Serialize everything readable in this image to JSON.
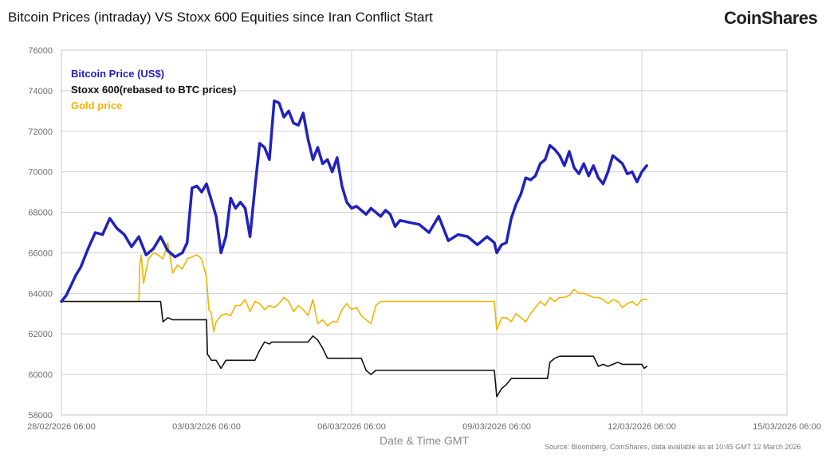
{
  "title": "Bitcoin Prices (intraday) VS  Stoxx 600 Equities since Iran Conflict Start",
  "brand": "CoinShares",
  "source": "Source: Bloomberg, CoinShares, data available as at 10:45 GMT 12 March 2026",
  "chart_data": {
    "type": "line",
    "xlabel": "Date & Time GMT",
    "ylabel": "",
    "ylim": [
      58000,
      76000
    ],
    "yticks": [
      58000,
      60000,
      62000,
      64000,
      66000,
      68000,
      70000,
      72000,
      74000,
      76000
    ],
    "yticklabels": [
      "58000",
      "60000",
      "62000",
      "64000",
      "66000",
      "68000",
      "70000",
      "72000",
      "74000",
      "76000"
    ],
    "xlim_days": [
      0,
      15
    ],
    "xticks_days": [
      0,
      3,
      6,
      9,
      12,
      15
    ],
    "xticklabels": [
      "28/02/2026 06:00",
      "03/03/2026 06:00",
      "06/03/2026 06:00",
      "09/03/2026 06:00",
      "12/03/2026 06:00",
      "15/03/2026 06:00"
    ],
    "grid": true,
    "legend_position": "top-left",
    "series": [
      {
        "name": "Bitcoin Price (US$)",
        "color": "#2222bb",
        "x": [
          0,
          0.1,
          0.2,
          0.3,
          0.4,
          0.55,
          0.7,
          0.85,
          1.0,
          1.15,
          1.3,
          1.45,
          1.6,
          1.75,
          1.9,
          2.05,
          2.2,
          2.35,
          2.5,
          2.6,
          2.7,
          2.8,
          2.9,
          3.0,
          3.1,
          3.2,
          3.3,
          3.4,
          3.5,
          3.6,
          3.7,
          3.8,
          3.9,
          4.0,
          4.1,
          4.2,
          4.3,
          4.4,
          4.5,
          4.6,
          4.7,
          4.8,
          4.9,
          5.0,
          5.1,
          5.2,
          5.3,
          5.4,
          5.5,
          5.6,
          5.7,
          5.8,
          5.9,
          6.0,
          6.1,
          6.2,
          6.3,
          6.4,
          6.5,
          6.6,
          6.7,
          6.8,
          6.9,
          7.0,
          7.2,
          7.4,
          7.6,
          7.8,
          8.0,
          8.2,
          8.4,
          8.6,
          8.8,
          8.95,
          9.0,
          9.1,
          9.2,
          9.3,
          9.4,
          9.5,
          9.6,
          9.7,
          9.8,
          9.9,
          10.0,
          10.1,
          10.2,
          10.3,
          10.4,
          10.5,
          10.6,
          10.7,
          10.8,
          10.9,
          11.0,
          11.1,
          11.2,
          11.3,
          11.4,
          11.5,
          11.6,
          11.7,
          11.8,
          11.9,
          12.0,
          12.1
        ],
        "y": [
          63600,
          63900,
          64400,
          64900,
          65300,
          66200,
          67000,
          66900,
          67700,
          67200,
          66900,
          66300,
          66800,
          65900,
          66200,
          66800,
          66100,
          65800,
          66000,
          66500,
          69200,
          69300,
          69000,
          69400,
          68600,
          67800,
          66000,
          66800,
          68700,
          68200,
          68500,
          68200,
          66800,
          69200,
          71400,
          71200,
          70600,
          73500,
          73400,
          72700,
          73000,
          72400,
          72300,
          72900,
          71600,
          70600,
          71200,
          70400,
          70600,
          70000,
          70700,
          69300,
          68500,
          68200,
          68300,
          68100,
          67900,
          68200,
          68000,
          67800,
          68100,
          67900,
          67300,
          67600,
          67500,
          67400,
          67000,
          67800,
          66600,
          66900,
          66800,
          66400,
          66800,
          66500,
          66000,
          66400,
          66500,
          67700,
          68400,
          68900,
          69700,
          69600,
          69800,
          70400,
          70600,
          71300,
          71100,
          70800,
          70300,
          71000,
          70200,
          69900,
          70400,
          69800,
          70300,
          69700,
          69400,
          70000,
          70800,
          70600,
          70400,
          69900,
          70000,
          69500,
          70000,
          70300
        ]
      },
      {
        "name": "Stoxx 600(rebased to BTC prices)",
        "color": "#111111",
        "x": [
          0,
          1.6,
          1.61,
          2.05,
          2.1,
          2.2,
          2.3,
          2.4,
          2.5,
          2.6,
          2.7,
          2.8,
          2.9,
          3.0,
          3.02,
          3.05,
          3.1,
          3.2,
          3.3,
          3.4,
          3.5,
          3.6,
          3.7,
          3.8,
          3.9,
          4.0,
          4.1,
          4.2,
          4.3,
          4.35,
          4.4,
          4.5,
          4.6,
          4.7,
          4.8,
          4.9,
          5.0,
          5.1,
          5.2,
          5.3,
          5.4,
          5.5,
          5.6,
          5.7,
          5.8,
          5.9,
          6.0,
          6.1,
          6.2,
          6.3,
          6.4,
          6.5,
          6.6,
          6.7,
          6.8,
          6.9,
          7.0,
          7.2,
          7.4,
          7.6,
          7.8,
          8.0,
          8.2,
          8.4,
          8.6,
          8.8,
          8.95,
          9.0,
          9.05,
          9.1,
          9.2,
          9.3,
          9.4,
          9.5,
          9.6,
          9.7,
          9.8,
          9.9,
          10.0,
          10.05,
          10.1,
          10.2,
          10.3,
          10.4,
          10.5,
          10.6,
          10.7,
          10.8,
          10.9,
          11.0,
          11.1,
          11.2,
          11.3,
          11.4,
          11.5,
          11.6,
          11.7,
          11.8,
          11.9,
          12.0,
          12.05,
          12.1
        ],
        "y": [
          63600,
          63600,
          63600,
          63600,
          62600,
          62800,
          62700,
          62700,
          62700,
          62700,
          62700,
          62700,
          62700,
          62700,
          61000,
          60900,
          60700,
          60700,
          60300,
          60700,
          60700,
          60700,
          60700,
          60700,
          60700,
          60700,
          61200,
          61600,
          61500,
          61600,
          61600,
          61600,
          61600,
          61600,
          61600,
          61600,
          61600,
          61600,
          61900,
          61700,
          61300,
          60800,
          60800,
          60800,
          60800,
          60800,
          60800,
          60800,
          60800,
          60200,
          60000,
          60200,
          60200,
          60200,
          60200,
          60200,
          60200,
          60200,
          60200,
          60200,
          60200,
          60200,
          60200,
          60200,
          60200,
          60200,
          60200,
          58900,
          59100,
          59300,
          59500,
          59800,
          59800,
          59800,
          59800,
          59800,
          59800,
          59800,
          59800,
          59800,
          60600,
          60800,
          60900,
          60900,
          60900,
          60900,
          60900,
          60900,
          60900,
          60900,
          60400,
          60500,
          60400,
          60500,
          60600,
          60500,
          60500,
          60500,
          60500,
          60500,
          60300,
          60400
        ]
      },
      {
        "name": "Gold price",
        "color": "#f2b400",
        "x": [
          0,
          1.6,
          1.62,
          1.65,
          1.7,
          1.8,
          1.9,
          2.0,
          2.1,
          2.2,
          2.3,
          2.4,
          2.5,
          2.6,
          2.7,
          2.8,
          2.9,
          3.0,
          3.05,
          3.1,
          3.15,
          3.2,
          3.3,
          3.4,
          3.5,
          3.6,
          3.7,
          3.8,
          3.9,
          4.0,
          4.1,
          4.2,
          4.3,
          4.4,
          4.5,
          4.6,
          4.7,
          4.8,
          4.9,
          5.0,
          5.1,
          5.2,
          5.3,
          5.4,
          5.5,
          5.6,
          5.7,
          5.8,
          5.9,
          6.0,
          6.1,
          6.2,
          6.3,
          6.4,
          6.5,
          6.6,
          6.7,
          6.8,
          6.9,
          7.0,
          7.2,
          7.4,
          7.6,
          7.8,
          8.0,
          8.2,
          8.4,
          8.6,
          8.8,
          8.95,
          9.0,
          9.1,
          9.2,
          9.3,
          9.4,
          9.5,
          9.6,
          9.7,
          9.8,
          9.9,
          10.0,
          10.1,
          10.2,
          10.3,
          10.4,
          10.5,
          10.6,
          10.7,
          10.8,
          10.9,
          11.0,
          11.1,
          11.2,
          11.3,
          11.4,
          11.5,
          11.6,
          11.7,
          11.8,
          11.9,
          12.0,
          12.1
        ],
        "y": [
          63600,
          63600,
          65400,
          65900,
          64500,
          65700,
          66000,
          65900,
          65700,
          66500,
          65000,
          65400,
          65200,
          65700,
          65800,
          65900,
          65700,
          64800,
          63200,
          63000,
          62100,
          62600,
          62900,
          63000,
          62900,
          63400,
          63400,
          63700,
          63100,
          63600,
          63500,
          63200,
          63400,
          63300,
          63500,
          63800,
          63600,
          63100,
          63400,
          63200,
          62900,
          63700,
          62500,
          62700,
          62400,
          62600,
          62600,
          63200,
          63500,
          63200,
          63300,
          62900,
          62700,
          62500,
          63400,
          63600,
          63600,
          63600,
          63600,
          63600,
          63600,
          63600,
          63600,
          63600,
          63600,
          63600,
          63600,
          63600,
          63600,
          63600,
          62200,
          62800,
          62800,
          62600,
          63000,
          62800,
          62600,
          63000,
          63300,
          63600,
          63400,
          63800,
          63600,
          63800,
          63800,
          63900,
          64200,
          64000,
          64000,
          63900,
          63800,
          63800,
          63700,
          63500,
          63700,
          63600,
          63300,
          63500,
          63600,
          63400,
          63700,
          63700
        ]
      }
    ]
  }
}
